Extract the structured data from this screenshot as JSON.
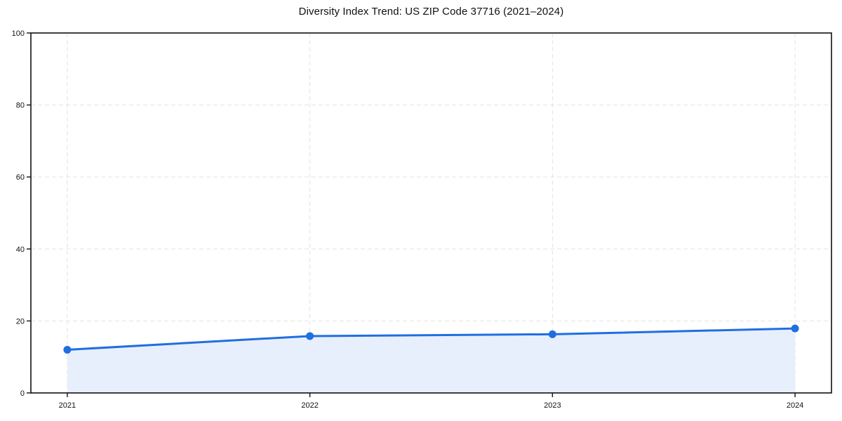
{
  "figure": {
    "background": "#ffffff"
  },
  "chart_data": {
    "type": "line",
    "title": "Diversity Index Trend: US ZIP Code 37716 (2021–2024)",
    "x": [
      "2021",
      "2022",
      "2023",
      "2024"
    ],
    "series": [
      {
        "name": "Diversity Index",
        "values": [
          12.0,
          15.8,
          16.3,
          17.9
        ]
      }
    ],
    "xlabel": "",
    "ylabel": "",
    "ylim": [
      0,
      100
    ],
    "yticks": [
      0,
      20,
      40,
      60,
      80,
      100
    ],
    "grid": true,
    "grid_style": "dashed",
    "legend": false,
    "area_fill": true,
    "colors": {
      "line": "#1f6fe0",
      "marker": "#1f6fe0",
      "fill": "#e8effc",
      "grid": "#e3e3e3",
      "spine": "#111111",
      "text": "#111111"
    }
  }
}
